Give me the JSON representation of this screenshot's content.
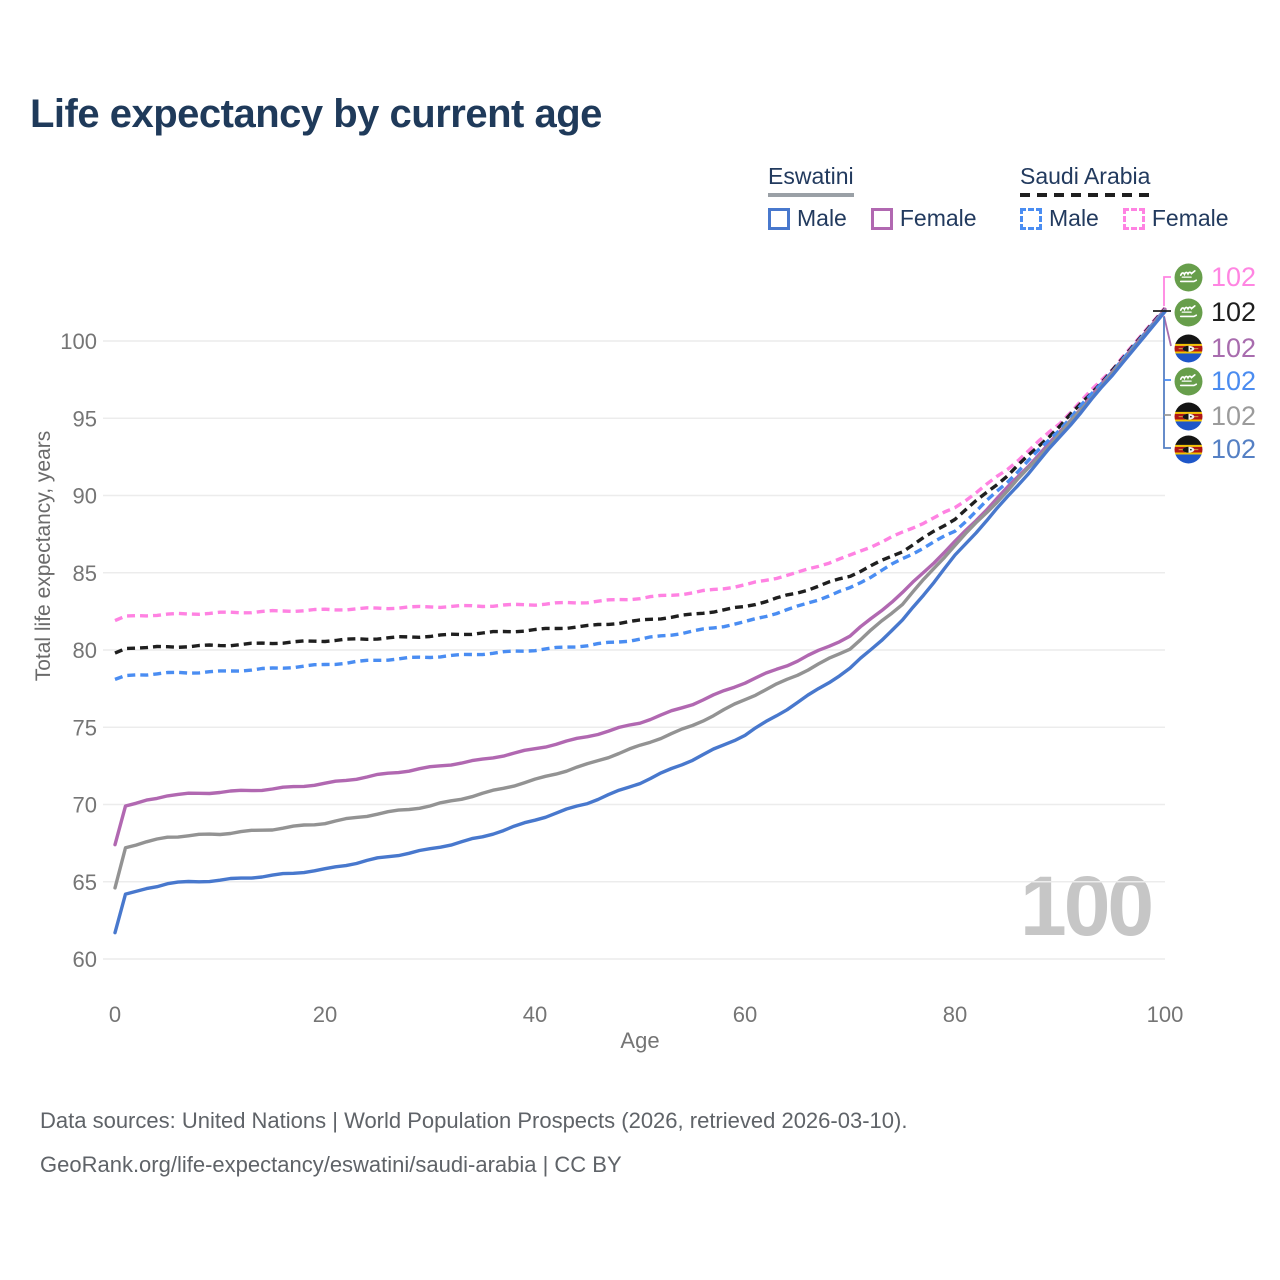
{
  "header": {
    "title": "Life expectancy by current age"
  },
  "legend": {
    "groups": [
      {
        "label": "Eswatini",
        "underline_style": "solid",
        "underline_color": "#9aa0a6",
        "items": [
          {
            "label": "Male",
            "color": "#4878cd",
            "style": "solid"
          },
          {
            "label": "Female",
            "color": "#b168b1",
            "style": "solid"
          }
        ]
      },
      {
        "label": "Saudi Arabia",
        "underline_style": "dashed",
        "underline_color": "#1f1f1f",
        "items": [
          {
            "label": "Male",
            "color": "#4a8df2",
            "style": "dashed"
          },
          {
            "label": "Female",
            "color": "#ff82e2",
            "style": "dashed"
          }
        ]
      }
    ]
  },
  "chart_data": {
    "type": "line",
    "title": "Life expectancy by current age",
    "xlabel": "Age",
    "ylabel": "Total life expectancy, years",
    "xlim": [
      0,
      100
    ],
    "ylim": [
      60,
      103
    ],
    "x_ticks": [
      0,
      20,
      40,
      60,
      80,
      100
    ],
    "y_ticks": [
      60,
      65,
      70,
      75,
      80,
      85,
      90,
      95,
      100
    ],
    "grid": "horizontal",
    "grid_color": "#ececec",
    "tick_color": "#757575",
    "anchor_ages": [
      0,
      1,
      5,
      10,
      15,
      20,
      25,
      30,
      35,
      40,
      45,
      50,
      55,
      60,
      65,
      70,
      75,
      80,
      85,
      90,
      95,
      100
    ],
    "series": [
      {
        "name": "Saudi Arabia Female",
        "country": "Saudi Arabia",
        "sex": "Female",
        "flag": "saudi-arabia",
        "style": "dashed",
        "color": "#ff82e2",
        "label_color": "#ff85e2",
        "end_label": "102",
        "values": [
          81.9,
          82.2,
          82.3,
          82.4,
          82.5,
          82.6,
          82.7,
          82.8,
          82.85,
          82.95,
          83.1,
          83.35,
          83.7,
          84.2,
          85.0,
          86.1,
          87.6,
          89.2,
          91.7,
          94.7,
          98.2,
          102.15
        ]
      },
      {
        "name": "Saudi Arabia Total",
        "country": "Saudi Arabia",
        "sex": "Total",
        "flag": "saudi-arabia",
        "style": "dashed",
        "color": "#1f1f1f",
        "label_color": "#1f1f1f",
        "end_label": "102",
        "values": [
          79.8,
          80.1,
          80.2,
          80.3,
          80.45,
          80.6,
          80.75,
          80.9,
          81.1,
          81.3,
          81.55,
          81.9,
          82.3,
          82.8,
          83.7,
          84.8,
          86.4,
          88.5,
          91.3,
          94.5,
          98.1,
          102.1
        ]
      },
      {
        "name": "Eswatini Female",
        "country": "Eswatini",
        "sex": "Female",
        "flag": "eswatini",
        "style": "solid",
        "color": "#b168b1",
        "label_color": "#a86cae",
        "end_label": "102",
        "values": [
          67.4,
          69.9,
          70.6,
          70.8,
          71.0,
          71.35,
          71.9,
          72.4,
          72.9,
          73.6,
          74.4,
          75.3,
          76.5,
          77.9,
          79.3,
          80.9,
          83.7,
          87.0,
          90.5,
          94.1,
          98.0,
          102.05
        ]
      },
      {
        "name": "Saudi Arabia Male",
        "country": "Saudi Arabia",
        "sex": "Male",
        "flag": "saudi-arabia",
        "style": "dashed",
        "color": "#4a8df2",
        "label_color": "#4b8cf0",
        "end_label": "102",
        "values": [
          78.1,
          78.35,
          78.5,
          78.6,
          78.8,
          79.05,
          79.35,
          79.55,
          79.75,
          80.0,
          80.3,
          80.7,
          81.2,
          81.8,
          82.8,
          84.0,
          85.9,
          87.7,
          90.9,
          94.3,
          98.05,
          102.0
        ]
      },
      {
        "name": "Eswatini Total",
        "country": "Eswatini",
        "sex": "Total",
        "flag": "eswatini",
        "style": "solid",
        "color": "#939393",
        "label_color": "#9b9b9b",
        "end_label": "102",
        "values": [
          64.6,
          67.2,
          67.9,
          68.1,
          68.4,
          68.8,
          69.4,
          69.9,
          70.7,
          71.6,
          72.6,
          73.8,
          75.1,
          76.8,
          78.4,
          80.1,
          83.0,
          86.8,
          90.3,
          94.0,
          97.9,
          101.95
        ]
      },
      {
        "name": "Eswatini Male",
        "country": "Eswatini",
        "sex": "Male",
        "flag": "eswatini",
        "style": "solid",
        "color": "#4878cd",
        "label_color": "#5580c4",
        "end_label": "102",
        "values": [
          61.7,
          64.2,
          64.9,
          65.1,
          65.4,
          65.8,
          66.5,
          67.1,
          67.9,
          69.0,
          70.1,
          71.4,
          72.9,
          74.5,
          76.6,
          78.8,
          81.9,
          86.1,
          89.9,
          93.8,
          97.8,
          101.9
        ]
      }
    ],
    "watermark": "100",
    "legend_position": "top-right"
  },
  "footer": {
    "line1": "Data sources: United Nations | World Population Prospects (2026, retrieved 2026-03-10).",
    "line2": "GeoRank.org/life-expectancy/eswatini/saudi-arabia | CC BY"
  }
}
